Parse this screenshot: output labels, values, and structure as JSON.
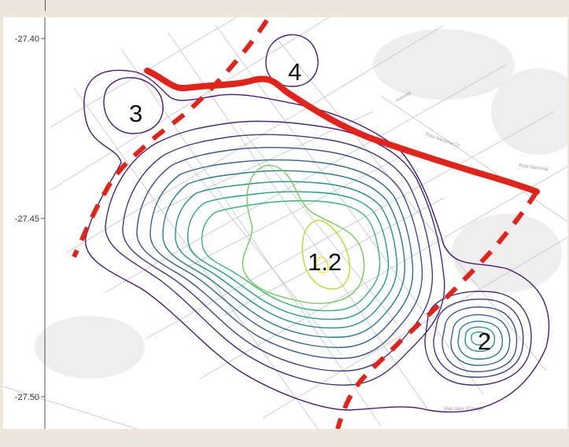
{
  "figure": {
    "y_axis": {
      "ticks": [
        {
          "label": "-27.40",
          "value": -27.4
        },
        {
          "label": "-27.45",
          "value": -27.45
        },
        {
          "label": "-27.50",
          "value": -27.5
        }
      ]
    },
    "cluster_labels": [
      {
        "id": "c12",
        "text": "1.2"
      },
      {
        "id": "c2",
        "text": "2"
      },
      {
        "id": "c3",
        "text": "3"
      },
      {
        "id": "c4",
        "text": "4"
      }
    ],
    "basemap_text": [
      "Ruta Nacional 12",
      "Ruta Nacional",
      "Avenida",
      "Map data ©Google"
    ],
    "colors": {
      "boundary": "#e2231a",
      "outer_contour": "#5b2a86",
      "inner_contour": "#c9e02c",
      "mid_contour": "#21918c",
      "streets": "#c9c9c9",
      "background": "#ece6dc"
    }
  }
}
